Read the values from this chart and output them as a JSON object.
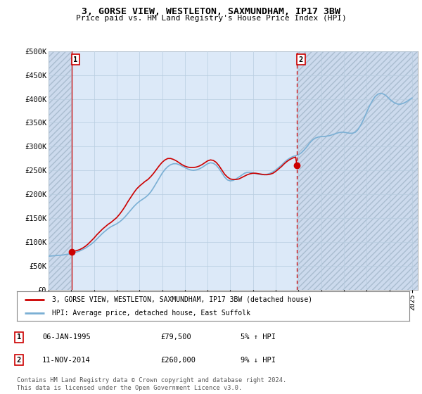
{
  "title": "3, GORSE VIEW, WESTLETON, SAXMUNDHAM, IP17 3BW",
  "subtitle": "Price paid vs. HM Land Registry's House Price Index (HPI)",
  "plot_bg": "#dce9f8",
  "hatch_bg": "#ccdaed",
  "grid_color": "#b8cde0",
  "ylim": [
    0,
    500000
  ],
  "yticks": [
    0,
    50000,
    100000,
    150000,
    200000,
    250000,
    300000,
    350000,
    400000,
    450000,
    500000
  ],
  "ytick_labels": [
    "£0",
    "£50K",
    "£100K",
    "£150K",
    "£200K",
    "£250K",
    "£300K",
    "£350K",
    "£400K",
    "£450K",
    "£500K"
  ],
  "xmin_year": 1993,
  "xmax_year": 2025.5,
  "sale1_date": 1995.03,
  "sale1_price": 79500,
  "sale1_label": "1",
  "sale2_date": 2014.87,
  "sale2_price": 260000,
  "sale2_label": "2",
  "sale1_info": "06-JAN-1995",
  "sale1_price_str": "£79,500",
  "sale1_hpi": "5% ↑ HPI",
  "sale2_info": "11-NOV-2014",
  "sale2_price_str": "£260,000",
  "sale2_hpi": "9% ↓ HPI",
  "legend_line1": "3, GORSE VIEW, WESTLETON, SAXMUNDHAM, IP17 3BW (detached house)",
  "legend_line2": "HPI: Average price, detached house, East Suffolk",
  "footer": "Contains HM Land Registry data © Crown copyright and database right 2024.\nThis data is licensed under the Open Government Licence v3.0.",
  "line_color_red": "#cc0000",
  "line_color_blue": "#7aafd4",
  "dot_color_red": "#cc0000",
  "xtick_years": [
    1993,
    1995,
    1997,
    1999,
    2001,
    2003,
    2005,
    2007,
    2009,
    2011,
    2013,
    2015,
    2017,
    2019,
    2021,
    2023,
    2025
  ],
  "hpi_years": [
    1993.0,
    1993.25,
    1993.5,
    1993.75,
    1994.0,
    1994.25,
    1994.5,
    1994.75,
    1995.0,
    1995.25,
    1995.5,
    1995.75,
    1996.0,
    1996.25,
    1996.5,
    1996.75,
    1997.0,
    1997.25,
    1997.5,
    1997.75,
    1998.0,
    1998.25,
    1998.5,
    1998.75,
    1999.0,
    1999.25,
    1999.5,
    1999.75,
    2000.0,
    2000.25,
    2000.5,
    2000.75,
    2001.0,
    2001.25,
    2001.5,
    2001.75,
    2002.0,
    2002.25,
    2002.5,
    2002.75,
    2003.0,
    2003.25,
    2003.5,
    2003.75,
    2004.0,
    2004.25,
    2004.5,
    2004.75,
    2005.0,
    2005.25,
    2005.5,
    2005.75,
    2006.0,
    2006.25,
    2006.5,
    2006.75,
    2007.0,
    2007.25,
    2007.5,
    2007.75,
    2008.0,
    2008.25,
    2008.5,
    2008.75,
    2009.0,
    2009.25,
    2009.5,
    2009.75,
    2010.0,
    2010.25,
    2010.5,
    2010.75,
    2011.0,
    2011.25,
    2011.5,
    2011.75,
    2012.0,
    2012.25,
    2012.5,
    2012.75,
    2013.0,
    2013.25,
    2013.5,
    2013.75,
    2014.0,
    2014.25,
    2014.5,
    2014.75,
    2015.0,
    2015.25,
    2015.5,
    2015.75,
    2016.0,
    2016.25,
    2016.5,
    2016.75,
    2017.0,
    2017.25,
    2017.5,
    2017.75,
    2018.0,
    2018.25,
    2018.5,
    2018.75,
    2019.0,
    2019.25,
    2019.5,
    2019.75,
    2020.0,
    2020.25,
    2020.5,
    2020.75,
    2021.0,
    2021.25,
    2021.5,
    2021.75,
    2022.0,
    2022.25,
    2022.5,
    2022.75,
    2023.0,
    2023.25,
    2023.5,
    2023.75,
    2024.0,
    2024.25,
    2024.5,
    2024.75,
    2025.0
  ],
  "hpi_values": [
    70000,
    70500,
    71000,
    71500,
    72000,
    72500,
    73500,
    74500,
    75500,
    77000,
    79000,
    81000,
    84000,
    87000,
    91000,
    95000,
    100000,
    106000,
    112000,
    118000,
    123000,
    128000,
    132000,
    135000,
    138000,
    142000,
    147000,
    153000,
    160000,
    167000,
    174000,
    180000,
    185000,
    189000,
    193000,
    198000,
    205000,
    214000,
    224000,
    234000,
    244000,
    252000,
    258000,
    262000,
    264000,
    264000,
    262000,
    259000,
    256000,
    253000,
    251000,
    250000,
    251000,
    253000,
    256000,
    260000,
    264000,
    266000,
    265000,
    261000,
    254000,
    245000,
    236000,
    230000,
    228000,
    229000,
    232000,
    236000,
    240000,
    244000,
    246000,
    246000,
    245000,
    243000,
    242000,
    241000,
    241000,
    242000,
    244000,
    247000,
    251000,
    256000,
    261000,
    267000,
    272000,
    276000,
    279000,
    281000,
    283000,
    287000,
    293000,
    300000,
    308000,
    314000,
    318000,
    320000,
    321000,
    321000,
    322000,
    323000,
    325000,
    327000,
    329000,
    330000,
    330000,
    329000,
    328000,
    328000,
    330000,
    336000,
    346000,
    358000,
    372000,
    385000,
    396000,
    405000,
    410000,
    412000,
    410000,
    406000,
    400000,
    395000,
    391000,
    389000,
    389000,
    391000,
    394000,
    398000,
    402000
  ],
  "price_years": [
    1995.03,
    1995.25,
    1995.5,
    1995.75,
    1996.0,
    1996.25,
    1996.5,
    1996.75,
    1997.0,
    1997.25,
    1997.5,
    1997.75,
    1998.0,
    1998.25,
    1998.5,
    1998.75,
    1999.0,
    1999.25,
    1999.5,
    1999.75,
    2000.0,
    2000.25,
    2000.5,
    2000.75,
    2001.0,
    2001.25,
    2001.5,
    2001.75,
    2002.0,
    2002.25,
    2002.5,
    2002.75,
    2003.0,
    2003.25,
    2003.5,
    2003.75,
    2004.0,
    2004.25,
    2004.5,
    2004.75,
    2005.0,
    2005.25,
    2005.5,
    2005.75,
    2006.0,
    2006.25,
    2006.5,
    2006.75,
    2007.0,
    2007.25,
    2007.5,
    2007.75,
    2008.0,
    2008.25,
    2008.5,
    2008.75,
    2009.0,
    2009.25,
    2009.5,
    2009.75,
    2010.0,
    2010.25,
    2010.5,
    2010.75,
    2011.0,
    2011.25,
    2011.5,
    2011.75,
    2012.0,
    2012.25,
    2012.5,
    2012.75,
    2013.0,
    2013.25,
    2013.5,
    2013.75,
    2014.0,
    2014.25,
    2014.5,
    2014.75,
    2014.87
  ],
  "price_values": [
    79500,
    80500,
    82000,
    84000,
    87000,
    91000,
    96000,
    102000,
    108000,
    115000,
    121000,
    127000,
    132000,
    137000,
    141000,
    146000,
    151000,
    158000,
    166000,
    175000,
    185000,
    194000,
    203000,
    211000,
    217000,
    222000,
    227000,
    231000,
    237000,
    244000,
    252000,
    260000,
    267000,
    272000,
    275000,
    275000,
    273000,
    270000,
    266000,
    262000,
    259000,
    257000,
    256000,
    256000,
    257000,
    259000,
    262000,
    266000,
    270000,
    272000,
    271000,
    267000,
    260000,
    251000,
    242000,
    236000,
    232000,
    231000,
    231000,
    232000,
    235000,
    238000,
    241000,
    243000,
    244000,
    244000,
    243000,
    242000,
    241000,
    241000,
    242000,
    244000,
    248000,
    253000,
    258000,
    264000,
    269000,
    273000,
    276000,
    278000,
    260000
  ]
}
